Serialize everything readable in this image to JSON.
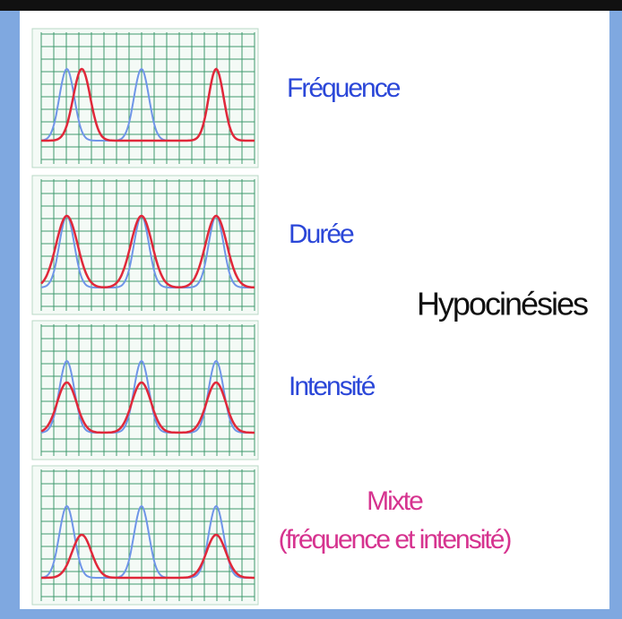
{
  "panels": [
    {
      "label": "Fréquence"
    },
    {
      "label": "Durée"
    },
    {
      "label": "Intensité"
    },
    {
      "label": "Mixte",
      "sublabel": "(fréquence et intensité)"
    }
  ],
  "group_label": "Hypocinésies"
}
